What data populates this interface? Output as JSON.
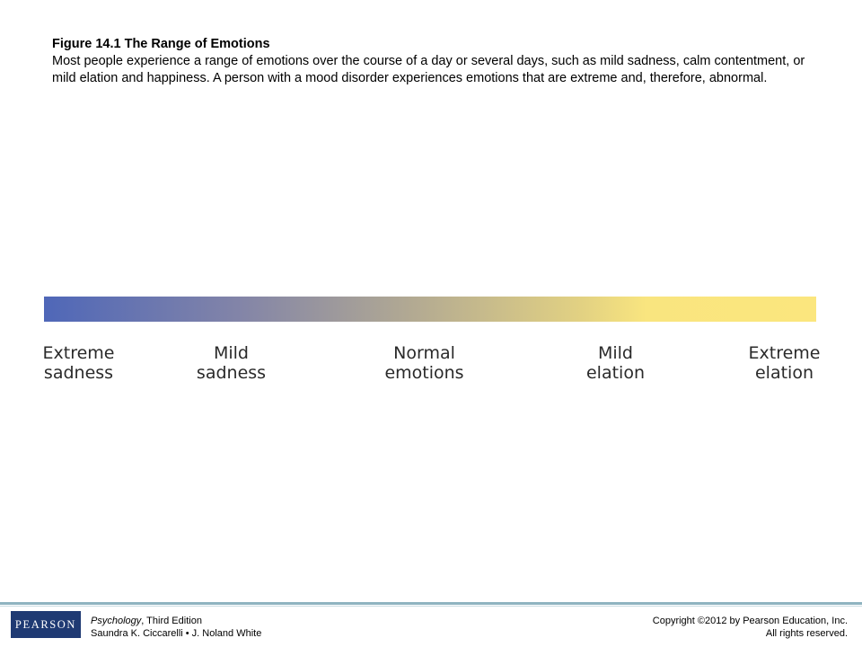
{
  "caption": {
    "title": "Figure 14.1 The Range of Emotions",
    "body": "Most people experience a range of emotions over the course of a day or several days, such as mild sadness, calm contentment, or mild elation and happiness. A person with a mood disorder experiences emotions that are extreme and, therefore, abnormal."
  },
  "scale": {
    "gradient_start_color": "#4f67b8",
    "gradient_end_color": "#fbe67e",
    "labels": [
      {
        "line1": "Extreme",
        "line2": "sadness"
      },
      {
        "line1": "Mild",
        "line2": "sadness"
      },
      {
        "line1": "Normal",
        "line2": "emotions"
      },
      {
        "line1": "Mild",
        "line2": "elation"
      },
      {
        "line1": "Extreme",
        "line2": "elation"
      }
    ]
  },
  "footer": {
    "logo_text": "PEARSON",
    "book_title": "Psychology",
    "book_edition": ", Third Edition",
    "authors": "Saundra K. Ciccarelli • J. Noland White",
    "copyright": "Copyright ©2012 by Pearson Education, Inc.",
    "rights": "All rights reserved."
  }
}
